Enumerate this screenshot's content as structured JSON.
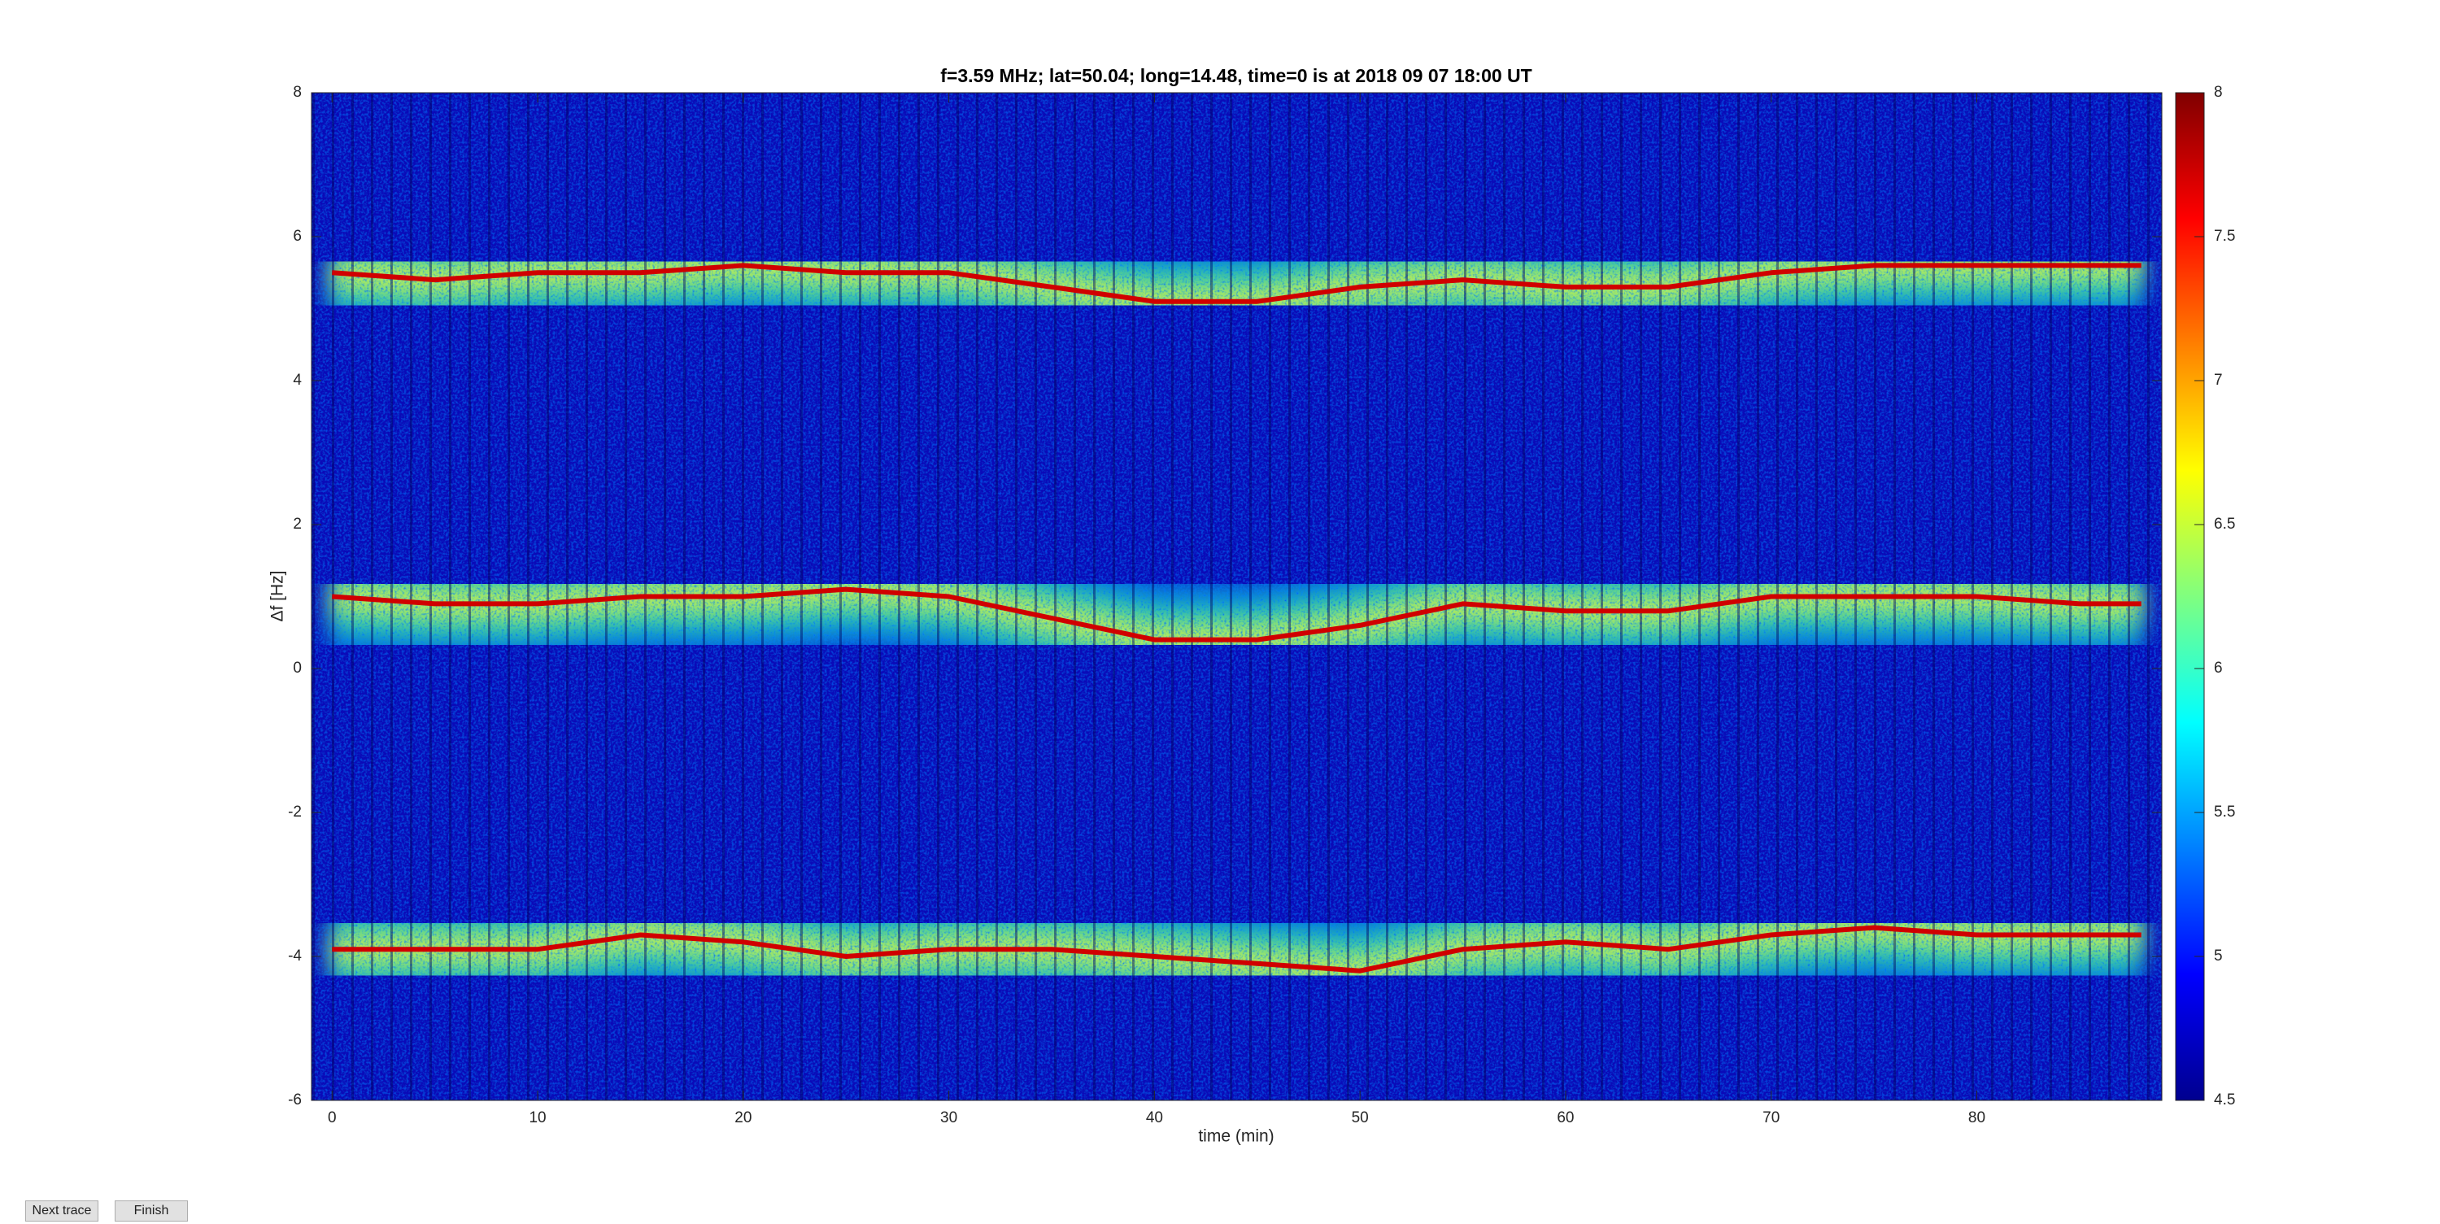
{
  "chart_data": {
    "type": "heatmap",
    "title": "f=3.59 MHz;  lat=50.04; long=14.48, time=0 is at 2018 09 07 18:00 UT",
    "xlabel": "time (min)",
    "ylabel": "Δf [Hz]",
    "xlim": [
      -1,
      89
    ],
    "xticks": [
      0,
      10,
      20,
      30,
      40,
      50,
      60,
      70,
      80
    ],
    "ylim": [
      -6,
      8
    ],
    "yticks": [
      -6,
      -4,
      -2,
      0,
      2,
      4,
      6,
      8
    ],
    "colormap": "jet",
    "clim": [
      4.5,
      8
    ],
    "cticks": [
      4.5,
      5,
      5.5,
      6,
      6.5,
      7,
      7.5,
      8
    ],
    "x": [
      0,
      5,
      10,
      15,
      20,
      25,
      30,
      35,
      40,
      45,
      50,
      55,
      60,
      65,
      70,
      75,
      80,
      85,
      88
    ],
    "series": [
      {
        "color": "#d00000",
        "values": [
          5.5,
          5.4,
          5.5,
          5.5,
          5.6,
          5.5,
          5.5,
          5.3,
          5.1,
          5.1,
          5.3,
          5.4,
          5.3,
          5.3,
          5.5,
          5.6,
          5.6,
          5.6,
          5.6
        ]
      },
      {
        "color": "#d00000",
        "values": [
          1.0,
          0.9,
          0.9,
          1.0,
          1.0,
          1.1,
          1.0,
          0.7,
          0.4,
          0.4,
          0.6,
          0.9,
          0.8,
          0.8,
          1.0,
          1.0,
          1.0,
          0.9,
          0.9
        ]
      },
      {
        "color": "#d00000",
        "values": [
          -3.9,
          -3.9,
          -3.9,
          -3.7,
          -3.8,
          -4.0,
          -3.9,
          -3.9,
          -4.0,
          -4.1,
          -4.2,
          -3.9,
          -3.8,
          -3.9,
          -3.7,
          -3.6,
          -3.7,
          -3.7,
          -3.7
        ]
      }
    ]
  },
  "buttons": [
    "Next trace",
    "Finish"
  ]
}
